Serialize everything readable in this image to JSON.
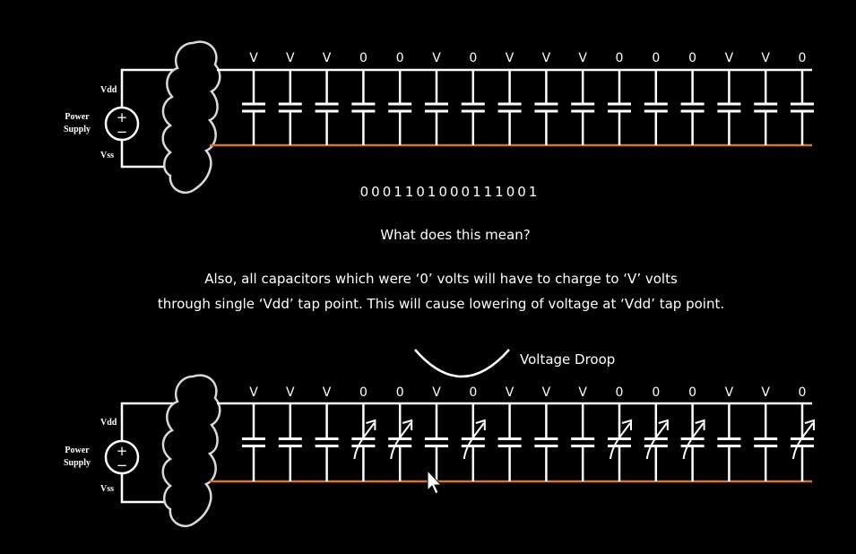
{
  "top_circuit": {
    "power_label_line1": "Power",
    "power_label_line2": "Supply",
    "vdd_label": "Vdd",
    "vss_label": "Vss",
    "plus_symbol": "+",
    "minus_symbol": "−",
    "capacitor_voltages": [
      "V",
      "V",
      "V",
      "0",
      "0",
      "V",
      "0",
      "V",
      "V",
      "V",
      "0",
      "0",
      "0",
      "V",
      "V",
      "0"
    ]
  },
  "binary_string": "0001101000111001",
  "question": "What does this mean?",
  "explanation_line1": "Also, all capacitors which were ‘0’ volts will have to charge to ‘V’ volts",
  "explanation_line2": "through single ‘Vdd’ tap point. This will cause lowering of voltage at ‘Vdd’ tap point.",
  "droop_label": "Voltage Droop",
  "bottom_circuit": {
    "power_label_line1": "Power",
    "power_label_line2": "Supply",
    "vdd_label": "Vdd",
    "vss_label": "Vss",
    "plus_symbol": "+",
    "minus_symbol": "−",
    "capacitor_voltages": [
      "V",
      "V",
      "V",
      "0",
      "0",
      "V",
      "0",
      "V",
      "V",
      "V",
      "0",
      "0",
      "0",
      "V",
      "V",
      "0"
    ],
    "charging_arrow_capacitors": [
      3,
      4,
      6,
      10,
      11,
      12,
      15
    ]
  },
  "colors": {
    "background": "#000000",
    "wire": "#ffffff",
    "ground_rail": "#d8742c",
    "text": "#ffffff"
  }
}
